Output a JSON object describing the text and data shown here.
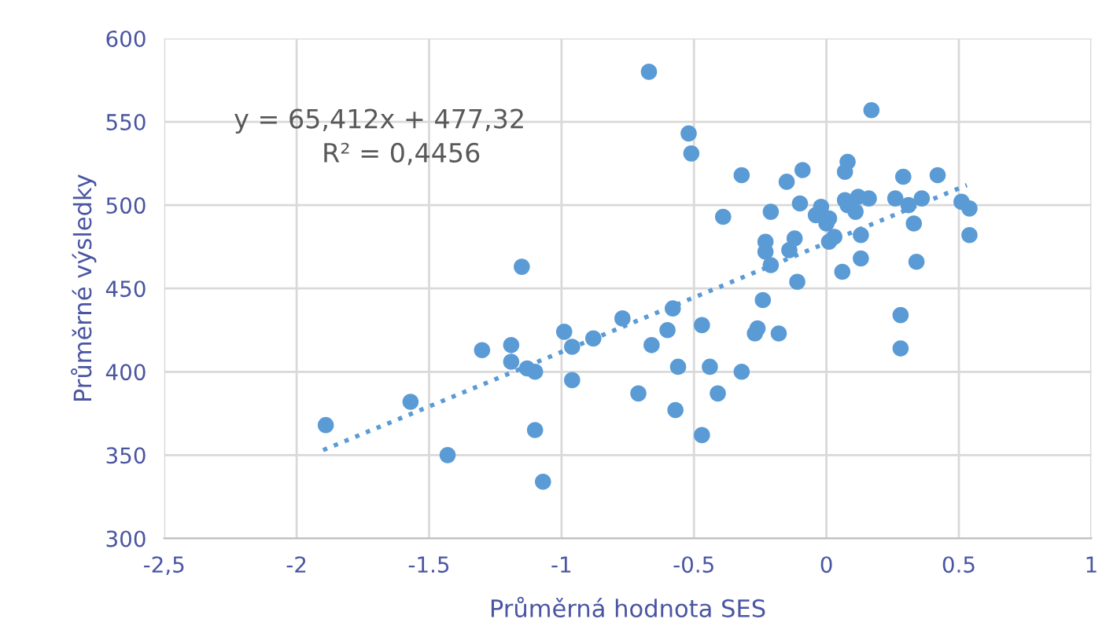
{
  "chart_data": {
    "type": "scatter",
    "xlabel": "Průměrná hodnota SES",
    "ylabel": "Průměrné výsledky",
    "xlim": [
      -2.5,
      1
    ],
    "xticks": [
      {
        "value": -2.5,
        "label": "-2,5"
      },
      -2,
      -1.5,
      -1,
      -0.5,
      0,
      0.5,
      1
    ],
    "ylim": [
      300,
      600
    ],
    "yticks": [
      300,
      350,
      400,
      450,
      500,
      550,
      600
    ],
    "grid": true,
    "annotations": [
      "y = 65,412x + 477,32",
      "R² = 0,4456"
    ],
    "series": [
      {
        "color": "#5b9bd5",
        "marker": "circle",
        "x": [
          -1.89,
          -1.57,
          -1.43,
          -1.3,
          -1.19,
          -1.19,
          -1.15,
          -1.13,
          -1.1,
          -1.1,
          -1.07,
          -0.99,
          -0.96,
          -0.96,
          -0.88,
          -0.77,
          -0.71,
          -0.67,
          -0.66,
          -0.6,
          -0.58,
          -0.56,
          -0.57,
          -0.52,
          -0.51,
          -0.47,
          -0.47,
          -0.44,
          -0.41,
          -0.39,
          -0.32,
          -0.32,
          -0.27,
          -0.26,
          -0.24,
          -0.23,
          -0.23,
          -0.21,
          -0.21,
          -0.18,
          -0.15,
          -0.14,
          -0.12,
          -0.11,
          -0.1,
          -0.09,
          -0.04,
          -0.02,
          0.01,
          0.0,
          0.01,
          0.03,
          0.06,
          0.07,
          0.08,
          0.07,
          0.08,
          0.11,
          0.12,
          0.13,
          0.13,
          0.16,
          0.17,
          0.26,
          0.28,
          0.28,
          0.29,
          0.31,
          0.33,
          0.34,
          0.36,
          0.42,
          0.51,
          0.54,
          0.54
        ],
        "values": [
          368,
          382,
          350,
          413,
          416,
          406,
          463,
          402,
          400,
          365,
          334,
          424,
          415,
          395,
          420,
          432,
          387,
          580,
          416,
          425,
          438,
          403,
          377,
          543,
          531,
          428,
          362,
          403,
          387,
          493,
          400,
          518,
          423,
          426,
          443,
          478,
          472,
          464,
          496,
          423,
          514,
          473,
          480,
          454,
          501,
          521,
          494,
          499,
          492,
          489,
          478,
          481,
          460,
          520,
          526,
          503,
          500,
          496,
          505,
          482,
          468,
          504,
          557,
          504,
          434,
          414,
          517,
          500,
          489,
          466,
          504,
          518,
          502,
          498,
          482
        ]
      },
      {
        "type": "line",
        "color": "#5b9bd5",
        "line_style": "dotted",
        "x": [
          -1.9,
          0.53
        ],
        "values": [
          353,
          512
        ]
      }
    ]
  }
}
